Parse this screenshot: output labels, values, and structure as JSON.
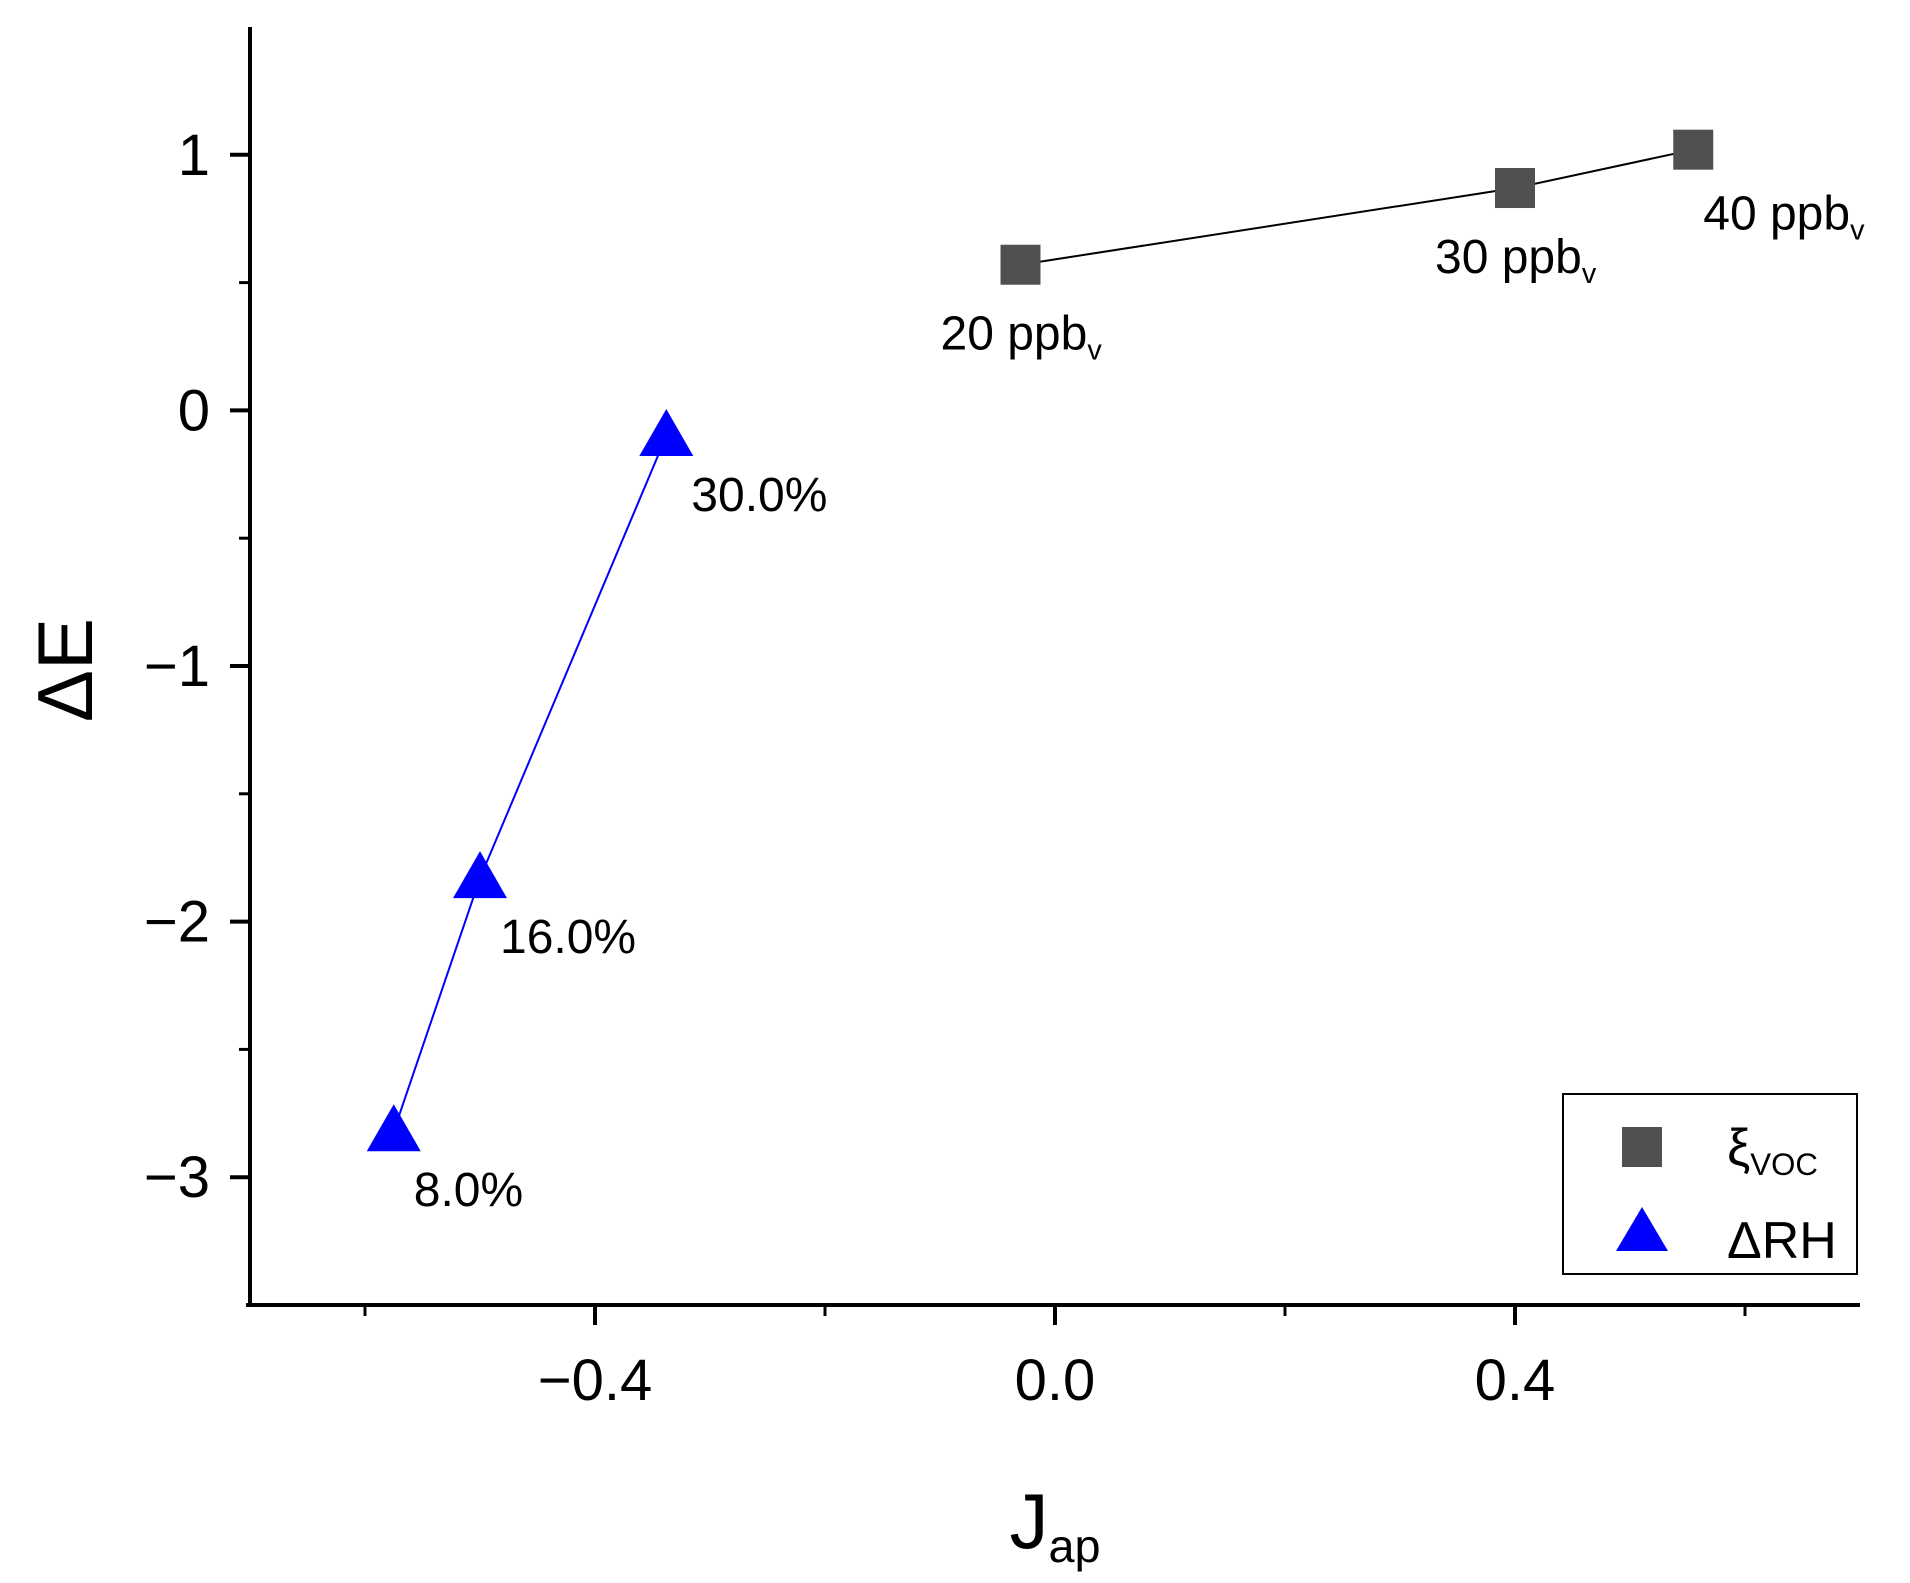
{
  "chart_data": {
    "type": "scatter",
    "xlabel": {
      "main": "J",
      "sub": "ap"
    },
    "ylabel": "ΔE",
    "xlim": [
      -0.7,
      0.7
    ],
    "ylim": [
      -3.5,
      1.5
    ],
    "x_ticks": [
      -0.4,
      0.0,
      0.4
    ],
    "x_tick_labels": [
      "−0.4",
      "0.0",
      "0.4"
    ],
    "x_minor_ticks": [
      -0.6,
      -0.2,
      0.2,
      0.6
    ],
    "y_ticks": [
      -3,
      -2,
      -1,
      0,
      1
    ],
    "y_tick_labels": [
      "−3",
      "−2",
      "−1",
      "0",
      "1"
    ],
    "y_minor_ticks": [
      -2.5,
      -1.5,
      -0.5,
      0.5
    ],
    "grid": false,
    "legend_position": "bottom-right",
    "series": [
      {
        "name": "ξ",
        "name_sub": "VOC",
        "marker": "square",
        "color": "#505050",
        "line_color": "#000000",
        "x": [
          -0.03,
          0.4,
          0.555
        ],
        "y": [
          0.57,
          0.87,
          1.02
        ],
        "labels": [
          {
            "main": "20 ppb",
            "sub": "v"
          },
          {
            "main": "30 ppb",
            "sub": "v"
          },
          {
            "main": "40 ppb",
            "sub": "v"
          }
        ]
      },
      {
        "name": "ΔRH",
        "name_sub": "",
        "marker": "triangle",
        "color": "#0000ff",
        "line_color": "#0000ff",
        "x": [
          -0.575,
          -0.5,
          -0.338
        ],
        "y": [
          -2.82,
          -1.83,
          -0.1
        ],
        "labels": [
          {
            "main": "8.0%",
            "sub": ""
          },
          {
            "main": "16.0%",
            "sub": ""
          },
          {
            "main": "30.0%",
            "sub": ""
          }
        ]
      }
    ]
  }
}
